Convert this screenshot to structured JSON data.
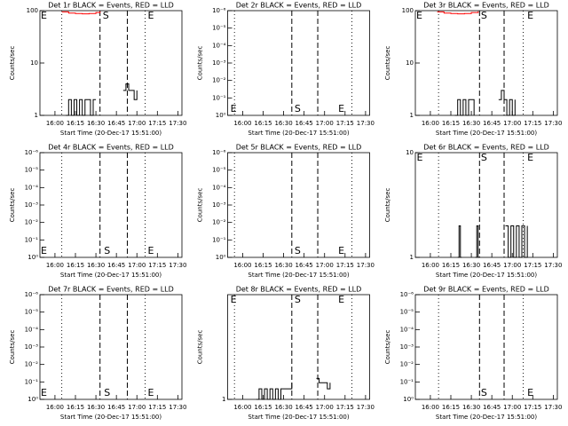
{
  "chart_data": [
    {
      "type": "step",
      "title": "Det 1r BLACK = Events, RED = LLD",
      "ylabel": "Counts/sec",
      "xlabel": "Start Time (20-Dec-17 15:51:00)",
      "log_y": true,
      "ylim": [
        1,
        100
      ],
      "yticks": [
        1,
        10,
        100
      ],
      "xlim": [
        -11,
        93
      ],
      "xticks": [
        {
          "value": 0,
          "label": "16:00"
        },
        {
          "value": 15,
          "label": "16:15"
        },
        {
          "value": 30,
          "label": "16:30"
        },
        {
          "value": 45,
          "label": "16:45"
        },
        {
          "value": 60,
          "label": "17:00"
        },
        {
          "value": 75,
          "label": "17:15"
        },
        {
          "value": 90,
          "label": "17:30"
        }
      ],
      "lines": [
        {
          "x": 5,
          "style": "dotted"
        },
        {
          "x": 33,
          "style": "dashed"
        },
        {
          "x": 53,
          "style": "dashed"
        },
        {
          "x": 66,
          "style": "dotted"
        }
      ],
      "annotation_position": "top",
      "annotations": [
        {
          "label": "E",
          "x": -11
        },
        {
          "label": "S",
          "x": 35
        },
        {
          "label": "E",
          "x": 68
        }
      ],
      "series": [
        {
          "name": "Events",
          "color": "#000000",
          "x": [
            8,
            10,
            12,
            14,
            16,
            18,
            20,
            22,
            24,
            26,
            28,
            30,
            null,
            50,
            52,
            54,
            56,
            58,
            60
          ],
          "values": [
            1,
            2,
            1,
            2,
            1,
            2,
            1,
            2,
            2,
            1,
            2,
            2,
            null,
            3,
            4,
            3,
            3,
            2,
            3
          ]
        },
        {
          "name": "LLD",
          "color": "#ff0000",
          "x": [
            5,
            10,
            15,
            20,
            25,
            30,
            33
          ],
          "values": [
            95,
            90,
            88,
            87,
            88,
            92,
            97
          ]
        }
      ]
    },
    {
      "type": "step",
      "title": "Det 2r BLACK = Events, RED = LLD",
      "ylabel": "Counts/sec",
      "xlabel": "Start Time (20-Dec-17 15:51:00)",
      "log_y": true,
      "ylim": [
        1,
        1e-06
      ],
      "yticks": [
        {
          "value": 1,
          "label": "10⁰"
        },
        {
          "value": 0.1,
          "label": "10⁻¹"
        },
        {
          "value": 0.01,
          "label": "10⁻²"
        },
        {
          "value": 0.001,
          "label": "10⁻³"
        },
        {
          "value": 0.0001,
          "label": "10⁻⁴"
        },
        {
          "value": 1e-05,
          "label": "10⁻⁵"
        },
        {
          "value": 1e-06,
          "label": "10⁻⁶"
        }
      ],
      "xlim": [
        -11,
        93
      ],
      "xticks": [
        {
          "value": 0,
          "label": "16:00"
        },
        {
          "value": 15,
          "label": "16:15"
        },
        {
          "value": 30,
          "label": "16:30"
        },
        {
          "value": 45,
          "label": "16:45"
        },
        {
          "value": 60,
          "label": "17:00"
        },
        {
          "value": 75,
          "label": "17:15"
        },
        {
          "value": 90,
          "label": "17:30"
        }
      ],
      "lines": [
        {
          "x": -6,
          "style": "dotted"
        },
        {
          "x": 36,
          "style": "dashed"
        },
        {
          "x": 55,
          "style": "dashed"
        },
        {
          "x": 80,
          "style": "dotted"
        }
      ],
      "annotation_position": "bottom",
      "annotations": [
        {
          "label": "E",
          "x": -9
        },
        {
          "label": "S",
          "x": 38
        },
        {
          "label": "E",
          "x": 70
        }
      ],
      "series": []
    },
    {
      "type": "step",
      "title": "Det 3r BLACK = Events, RED = LLD",
      "ylabel": "Counts/sec",
      "xlabel": "Start Time (20-Dec-17 15:51:00)",
      "log_y": true,
      "ylim": [
        1,
        100
      ],
      "yticks": [
        1,
        10,
        100
      ],
      "xlim": [
        -11,
        93
      ],
      "xticks": [
        {
          "value": 0,
          "label": "16:00"
        },
        {
          "value": 15,
          "label": "16:15"
        },
        {
          "value": 30,
          "label": "16:30"
        },
        {
          "value": 45,
          "label": "16:45"
        },
        {
          "value": 60,
          "label": "17:00"
        },
        {
          "value": 75,
          "label": "17:15"
        },
        {
          "value": 90,
          "label": "17:30"
        }
      ],
      "lines": [
        {
          "x": 6,
          "style": "dotted"
        },
        {
          "x": 36,
          "style": "dashed"
        },
        {
          "x": 54,
          "style": "dashed"
        },
        {
          "x": 68,
          "style": "dotted"
        }
      ],
      "annotation_position": "top",
      "annotations": [
        {
          "label": "E",
          "x": -11
        },
        {
          "label": "S",
          "x": 37
        },
        {
          "label": "E",
          "x": 71
        }
      ],
      "series": [
        {
          "name": "Events",
          "color": "#000000",
          "x": [
            18,
            20,
            22,
            24,
            26,
            28,
            30,
            32,
            null,
            50,
            52,
            54,
            56,
            58,
            60,
            62
          ],
          "values": [
            1,
            2,
            1,
            2,
            1,
            2,
            2,
            1,
            null,
            2,
            3,
            2,
            1,
            2,
            1,
            2
          ]
        },
        {
          "name": "LLD",
          "color": "#ff0000",
          "x": [
            5,
            10,
            15,
            20,
            25,
            30,
            35
          ],
          "values": [
            95,
            90,
            88,
            87,
            88,
            92,
            97
          ]
        }
      ]
    },
    {
      "type": "step",
      "title": "Det 4r BLACK = Events, RED = LLD",
      "ylabel": "Counts/sec",
      "xlabel": "Start Time (20-Dec-17 15:51:00)",
      "log_y": true,
      "ylim": [
        1,
        1e-06
      ],
      "yticks": [
        {
          "value": 1,
          "label": "10⁰"
        },
        {
          "value": 0.1,
          "label": "10⁻¹"
        },
        {
          "value": 0.01,
          "label": "10⁻²"
        },
        {
          "value": 0.001,
          "label": "10⁻³"
        },
        {
          "value": 0.0001,
          "label": "10⁻⁴"
        },
        {
          "value": 1e-05,
          "label": "10⁻⁵"
        },
        {
          "value": 1e-06,
          "label": "10⁻⁶"
        }
      ],
      "xlim": [
        -11,
        93
      ],
      "xticks": [
        {
          "value": 0,
          "label": "16:00"
        },
        {
          "value": 15,
          "label": "16:15"
        },
        {
          "value": 30,
          "label": "16:30"
        },
        {
          "value": 45,
          "label": "16:45"
        },
        {
          "value": 60,
          "label": "17:00"
        },
        {
          "value": 75,
          "label": "17:15"
        },
        {
          "value": 90,
          "label": "17:30"
        }
      ],
      "lines": [
        {
          "x": 5,
          "style": "dotted"
        },
        {
          "x": 33,
          "style": "dashed"
        },
        {
          "x": 53,
          "style": "dashed"
        },
        {
          "x": 66,
          "style": "dotted"
        }
      ],
      "annotation_position": "bottom",
      "annotations": [
        {
          "label": "E",
          "x": -11
        },
        {
          "label": "S",
          "x": 36
        },
        {
          "label": "E",
          "x": 68
        }
      ],
      "series": []
    },
    {
      "type": "step",
      "title": "Det 5r BLACK = Events, RED = LLD",
      "ylabel": "Counts/sec",
      "xlabel": "Start Time (20-Dec-17 15:51:00)",
      "log_y": true,
      "ylim": [
        1,
        1e-06
      ],
      "yticks": [
        {
          "value": 1,
          "label": "10⁰"
        },
        {
          "value": 0.1,
          "label": "10⁻¹"
        },
        {
          "value": 0.01,
          "label": "10⁻²"
        },
        {
          "value": 0.001,
          "label": "10⁻³"
        },
        {
          "value": 0.0001,
          "label": "10⁻⁴"
        },
        {
          "value": 1e-05,
          "label": "10⁻⁵"
        },
        {
          "value": 1e-06,
          "label": "10⁻⁶"
        }
      ],
      "xlim": [
        -11,
        93
      ],
      "xticks": [
        {
          "value": 0,
          "label": "16:00"
        },
        {
          "value": 15,
          "label": "16:15"
        },
        {
          "value": 30,
          "label": "16:30"
        },
        {
          "value": 45,
          "label": "16:45"
        },
        {
          "value": 60,
          "label": "17:00"
        },
        {
          "value": 75,
          "label": "17:15"
        },
        {
          "value": 90,
          "label": "17:30"
        }
      ],
      "lines": [
        {
          "x": -6,
          "style": "dotted"
        },
        {
          "x": 36,
          "style": "dashed"
        },
        {
          "x": 55,
          "style": "dashed"
        },
        {
          "x": 80,
          "style": "dotted"
        }
      ],
      "annotation_position": "bottom",
      "annotations": [
        {
          "label": "S",
          "x": 38
        },
        {
          "label": "E",
          "x": 70
        }
      ],
      "series": []
    },
    {
      "type": "step",
      "title": "Det 6r BLACK = Events, RED = LLD",
      "ylabel": "Counts/sec",
      "xlabel": "Start Time (20-Dec-17 15:51:00)",
      "log_y": true,
      "ylim": [
        1,
        10
      ],
      "yticks": [
        1,
        10
      ],
      "xlim": [
        -11,
        93
      ],
      "xticks": [
        {
          "value": 0,
          "label": "16:00"
        },
        {
          "value": 15,
          "label": "16:15"
        },
        {
          "value": 30,
          "label": "16:30"
        },
        {
          "value": 45,
          "label": "16:45"
        },
        {
          "value": 60,
          "label": "17:00"
        },
        {
          "value": 75,
          "label": "17:15"
        },
        {
          "value": 90,
          "label": "17:30"
        }
      ],
      "lines": [
        {
          "x": 6,
          "style": "dotted"
        },
        {
          "x": 36,
          "style": "dashed"
        },
        {
          "x": 54,
          "style": "dashed"
        },
        {
          "x": 68,
          "style": "dotted"
        }
      ],
      "annotation_position": "top",
      "annotations": [
        {
          "label": "E",
          "x": -10
        },
        {
          "label": "S",
          "x": 37
        },
        {
          "label": "E",
          "x": 71
        }
      ],
      "series": [
        {
          "name": "Events",
          "color": "#000000",
          "x": [
            20,
            21,
            22,
            23,
            null,
            33,
            34,
            35,
            36,
            null,
            55,
            57,
            59,
            61,
            63,
            65,
            67,
            69,
            71
          ],
          "values": [
            1,
            2,
            1,
            1,
            null,
            1,
            2,
            1,
            1,
            null,
            2,
            1,
            2,
            1,
            2,
            1,
            2,
            1,
            2
          ]
        }
      ]
    },
    {
      "type": "step",
      "title": "Det 7r BLACK = Events, RED = LLD",
      "ylabel": "Counts/sec",
      "xlabel": "Start Time (20-Dec-17 15:51:00)",
      "log_y": true,
      "ylim": [
        1,
        1e-06
      ],
      "yticks": [
        {
          "value": 1,
          "label": "10⁰"
        },
        {
          "value": 0.1,
          "label": "10⁻¹"
        },
        {
          "value": 0.01,
          "label": "10⁻²"
        },
        {
          "value": 0.001,
          "label": "10⁻³"
        },
        {
          "value": 0.0001,
          "label": "10⁻⁴"
        },
        {
          "value": 1e-05,
          "label": "10⁻⁵"
        },
        {
          "value": 1e-06,
          "label": "10⁻⁶"
        }
      ],
      "xlim": [
        -11,
        93
      ],
      "xticks": [
        {
          "value": 0,
          "label": "16:00"
        },
        {
          "value": 15,
          "label": "16:15"
        },
        {
          "value": 30,
          "label": "16:30"
        },
        {
          "value": 45,
          "label": "16:45"
        },
        {
          "value": 60,
          "label": "17:00"
        },
        {
          "value": 75,
          "label": "17:15"
        },
        {
          "value": 90,
          "label": "17:30"
        }
      ],
      "lines": [
        {
          "x": 5,
          "style": "dotted"
        },
        {
          "x": 33,
          "style": "dashed"
        },
        {
          "x": 53,
          "style": "dashed"
        },
        {
          "x": 66,
          "style": "dotted"
        }
      ],
      "annotation_position": "bottom",
      "annotations": [
        {
          "label": "E",
          "x": -11
        },
        {
          "label": "S",
          "x": 36
        },
        {
          "label": "E",
          "x": 68
        }
      ],
      "series": []
    },
    {
      "type": "step",
      "title": "Det 8r BLACK = Events, RED = LLD",
      "ylabel": "Counts/sec",
      "xlabel": "Start Time (20-Dec-17 15:51:00)",
      "log_y": true,
      "ylim": [
        1,
        1000
      ],
      "yticks": [
        1
      ],
      "xlim": [
        -11,
        93
      ],
      "xticks": [
        {
          "value": 0,
          "label": "16:00"
        },
        {
          "value": 15,
          "label": "16:15"
        },
        {
          "value": 30,
          "label": "16:30"
        },
        {
          "value": 45,
          "label": "16:45"
        },
        {
          "value": 60,
          "label": "17:00"
        },
        {
          "value": 75,
          "label": "17:15"
        },
        {
          "value": 90,
          "label": "17:30"
        }
      ],
      "lines": [
        {
          "x": -6,
          "style": "dotted"
        },
        {
          "x": 36,
          "style": "dashed"
        },
        {
          "x": 55,
          "style": "dashed"
        },
        {
          "x": 80,
          "style": "dotted"
        }
      ],
      "annotation_position": "top",
      "annotations": [
        {
          "label": "E",
          "x": -9
        },
        {
          "label": "S",
          "x": 38
        },
        {
          "label": "E",
          "x": 70
        }
      ],
      "series": [
        {
          "name": "Events",
          "color": "#000000",
          "x": [
            10,
            12,
            14,
            16,
            18,
            20,
            22,
            24,
            26,
            28,
            30,
            32,
            34,
            36,
            null,
            54,
            56,
            58,
            60,
            62,
            64
          ],
          "values": [
            1,
            2,
            1,
            2,
            1,
            2,
            1,
            2,
            1,
            2,
            2,
            2,
            2,
            3,
            null,
            4,
            3,
            3,
            3,
            2,
            3
          ]
        }
      ]
    },
    {
      "type": "step",
      "title": "Det 9r BLACK = Events, RED = LLD",
      "ylabel": "Counts/sec",
      "xlabel": "Start Time (20-Dec-17 15:51:00)",
      "log_y": true,
      "ylim": [
        1,
        1e-06
      ],
      "yticks": [
        {
          "value": 1,
          "label": "10⁰"
        },
        {
          "value": 0.1,
          "label": "10⁻¹"
        },
        {
          "value": 0.01,
          "label": "10⁻²"
        },
        {
          "value": 0.001,
          "label": "10⁻³"
        },
        {
          "value": 0.0001,
          "label": "10⁻⁴"
        },
        {
          "value": 1e-05,
          "label": "10⁻⁵"
        },
        {
          "value": 1e-06,
          "label": "10⁻⁶"
        }
      ],
      "xlim": [
        -11,
        93
      ],
      "xticks": [
        {
          "value": 0,
          "label": "16:00"
        },
        {
          "value": 15,
          "label": "16:15"
        },
        {
          "value": 30,
          "label": "16:30"
        },
        {
          "value": 45,
          "label": "16:45"
        },
        {
          "value": 60,
          "label": "17:00"
        },
        {
          "value": 75,
          "label": "17:15"
        },
        {
          "value": 90,
          "label": "17:30"
        }
      ],
      "lines": [
        {
          "x": 6,
          "style": "dotted"
        },
        {
          "x": 36,
          "style": "dashed"
        },
        {
          "x": 54,
          "style": "dashed"
        },
        {
          "x": 68,
          "style": "dotted"
        }
      ],
      "annotation_position": "bottom",
      "annotations": [
        {
          "label": "S",
          "x": 37
        },
        {
          "label": "E",
          "x": 71
        }
      ],
      "series": []
    }
  ]
}
